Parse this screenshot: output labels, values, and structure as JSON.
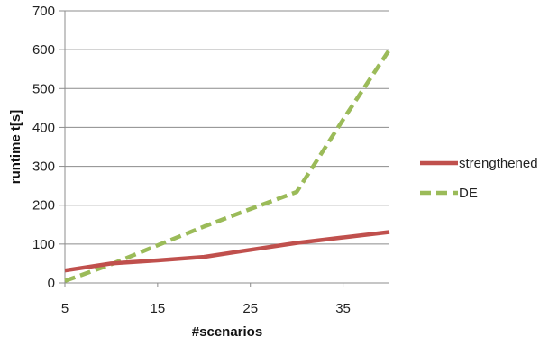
{
  "chart_data": {
    "type": "line",
    "xlabel": "#scenarios",
    "ylabel": "runtime t[s]",
    "xlim": [
      5,
      40
    ],
    "ylim": [
      0,
      700
    ],
    "x_ticks": [
      5,
      15,
      25,
      35
    ],
    "y_ticks": [
      0,
      100,
      200,
      300,
      400,
      500,
      600,
      700
    ],
    "grid": "horizontal",
    "legend_position": "right",
    "series": [
      {
        "name": "strengthened",
        "color": "#c0504d",
        "style": "solid",
        "x": [
          5,
          10,
          15,
          20,
          25,
          30,
          35,
          40
        ],
        "y": [
          32,
          50,
          58,
          67,
          85,
          103,
          117,
          131
        ]
      },
      {
        "name": "DE",
        "color": "#9bbb59",
        "style": "dashed",
        "x": [
          5,
          10,
          15,
          20,
          25,
          30,
          35,
          40
        ],
        "y": [
          5,
          48,
          97,
          145,
          190,
          234,
          420,
          600
        ]
      }
    ]
  }
}
